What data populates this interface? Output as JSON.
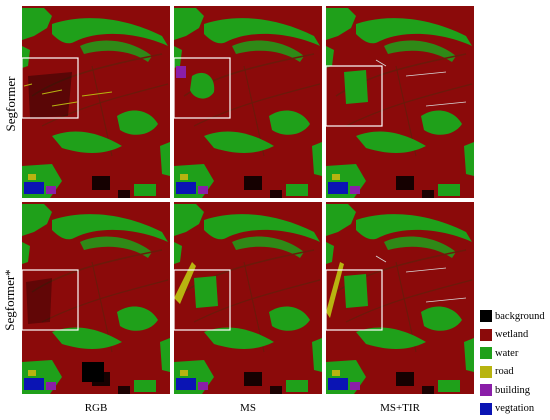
{
  "rows": [
    {
      "label": "Segformer"
    },
    {
      "label": "Segformer*"
    }
  ],
  "columns": [
    {
      "label": "RGB"
    },
    {
      "label": "MS"
    },
    {
      "label": "MS+TIR"
    }
  ],
  "legend": [
    {
      "label": "background",
      "color": "#000000"
    },
    {
      "label": "wetland",
      "color": "#8b0a0a"
    },
    {
      "label": "water",
      "color": "#1fa01a"
    },
    {
      "label": "road",
      "color": "#b8b410"
    },
    {
      "label": "building",
      "color": "#8a1ea8"
    },
    {
      "label": "vegtation",
      "color": "#0a14b4"
    }
  ],
  "colors": {
    "wetland": "#8b0a0a",
    "water": "#1fa01a",
    "road": "#b8b410",
    "building": "#8a1ea8",
    "vegetation": "#0a14b4",
    "background": "#000000",
    "highlight_box": "#ffffff"
  }
}
